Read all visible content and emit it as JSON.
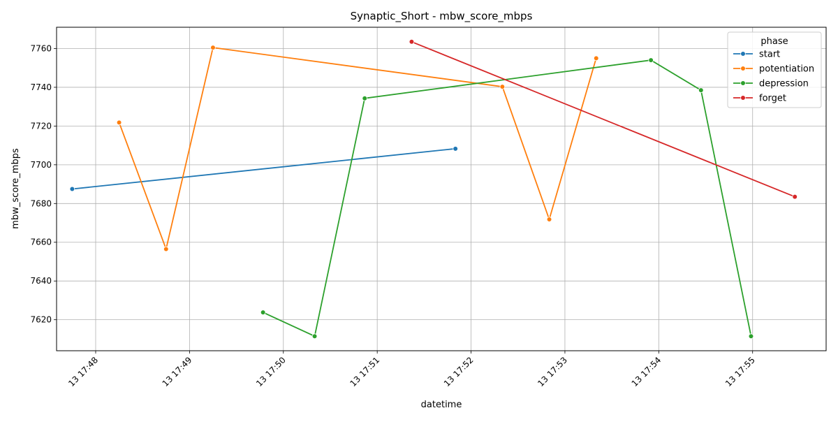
{
  "chart_data": {
    "type": "line",
    "title": "Synaptic_Short - mbw_score_mbps",
    "xlabel": "datetime",
    "ylabel": "mbw_score_mbps",
    "x_tick_labels": [
      "13 17:48",
      "13 17:49",
      "13 17:50",
      "13 17:51",
      "13 17:52",
      "13 17:53",
      "13 17:54",
      "13 17:55"
    ],
    "y_ticks": [
      7620,
      7640,
      7660,
      7680,
      7700,
      7720,
      7740,
      7760
    ],
    "xlim": [
      "17:47:35",
      "17:55:47"
    ],
    "ylim": [
      7604,
      7771
    ],
    "grid": true,
    "legend": {
      "title": "phase",
      "placement": "top-right"
    },
    "series": [
      {
        "name": "start",
        "color": "#1f77b4",
        "points": [
          {
            "x": "17:47:45",
            "y": 7687.5
          },
          {
            "x": "17:51:50",
            "y": 7708.3
          }
        ]
      },
      {
        "name": "potentiation",
        "color": "#ff7f0e",
        "points": [
          {
            "x": "17:48:15",
            "y": 7721.8
          },
          {
            "x": "17:48:45",
            "y": 7656.5
          },
          {
            "x": "17:49:15",
            "y": 7760.5
          },
          {
            "x": "17:52:20",
            "y": 7740.3
          },
          {
            "x": "17:52:50",
            "y": 7671.8
          },
          {
            "x": "17:53:20",
            "y": 7755.0
          }
        ]
      },
      {
        "name": "depression",
        "color": "#2ca02c",
        "points": [
          {
            "x": "17:49:47",
            "y": 7623.8
          },
          {
            "x": "17:50:20",
            "y": 7611.5
          },
          {
            "x": "17:50:52",
            "y": 7734.3
          },
          {
            "x": "17:53:55",
            "y": 7754.0
          },
          {
            "x": "17:54:27",
            "y": 7738.5
          },
          {
            "x": "17:54:59",
            "y": 7611.5
          }
        ]
      },
      {
        "name": "forget",
        "color": "#d62728",
        "points": [
          {
            "x": "17:51:22",
            "y": 7763.5
          },
          {
            "x": "17:55:27",
            "y": 7683.5
          }
        ]
      }
    ]
  }
}
